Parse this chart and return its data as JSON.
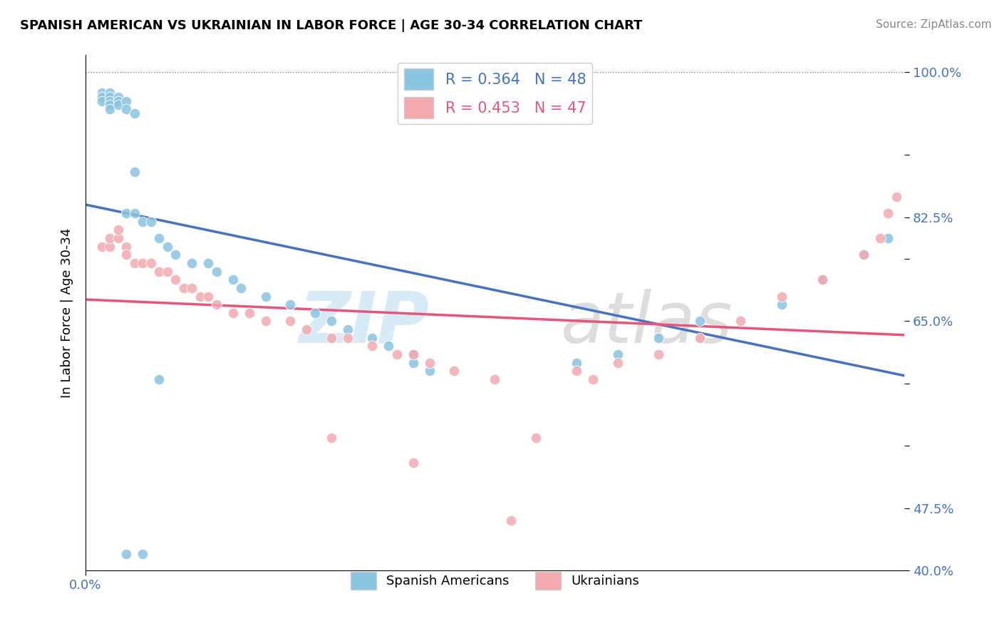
{
  "title": "SPANISH AMERICAN VS UKRAINIAN IN LABOR FORCE | AGE 30-34 CORRELATION CHART",
  "source": "Source: ZipAtlas.com",
  "ylabel": "In Labor Force | Age 30-34",
  "xlim": [
    0.0,
    1.0
  ],
  "ylim": [
    0.4,
    1.02
  ],
  "blue_color": "#89c4e1",
  "pink_color": "#f4a9b0",
  "blue_line_color": "#4472c4",
  "pink_line_color": "#e8547a",
  "legend_blue_label": "R = 0.364   N = 48",
  "legend_pink_label": "R = 0.453   N = 47",
  "legend_blue_series": "Spanish Americans",
  "legend_pink_series": "Ukrainians",
  "blue_r": 0.364,
  "blue_n": 48,
  "pink_r": 0.453,
  "pink_n": 47,
  "background_color": "#ffffff",
  "watermark_zip": "ZIP",
  "watermark_atlas": "atlas",
  "blue_x": [
    0.02,
    0.02,
    0.02,
    0.03,
    0.03,
    0.03,
    0.03,
    0.03,
    0.04,
    0.04,
    0.04,
    0.05,
    0.05,
    0.05,
    0.06,
    0.06,
    0.06,
    0.07,
    0.08,
    0.09,
    0.1,
    0.11,
    0.13,
    0.15,
    0.16,
    0.18,
    0.19,
    0.22,
    0.25,
    0.28,
    0.3,
    0.32,
    0.35,
    0.37,
    0.4,
    0.4,
    0.42,
    0.05,
    0.07,
    0.09,
    0.6,
    0.65,
    0.7,
    0.75,
    0.85,
    0.9,
    0.95,
    0.98
  ],
  "blue_y": [
    0.975,
    0.97,
    0.965,
    0.975,
    0.97,
    0.965,
    0.96,
    0.955,
    0.97,
    0.965,
    0.96,
    0.965,
    0.955,
    0.83,
    0.95,
    0.88,
    0.83,
    0.82,
    0.82,
    0.8,
    0.79,
    0.78,
    0.77,
    0.77,
    0.76,
    0.75,
    0.74,
    0.73,
    0.72,
    0.71,
    0.7,
    0.69,
    0.68,
    0.67,
    0.66,
    0.65,
    0.64,
    0.42,
    0.42,
    0.63,
    0.65,
    0.66,
    0.68,
    0.7,
    0.72,
    0.75,
    0.78,
    0.8
  ],
  "pink_x": [
    0.02,
    0.03,
    0.03,
    0.04,
    0.04,
    0.05,
    0.05,
    0.06,
    0.07,
    0.08,
    0.09,
    0.1,
    0.11,
    0.12,
    0.13,
    0.14,
    0.15,
    0.16,
    0.18,
    0.2,
    0.22,
    0.25,
    0.27,
    0.3,
    0.32,
    0.35,
    0.38,
    0.4,
    0.42,
    0.45,
    0.5,
    0.55,
    0.6,
    0.65,
    0.7,
    0.75,
    0.8,
    0.85,
    0.9,
    0.95,
    0.97,
    0.98,
    0.99,
    0.3,
    0.4,
    0.52,
    0.62
  ],
  "pink_y": [
    0.79,
    0.79,
    0.8,
    0.8,
    0.81,
    0.79,
    0.78,
    0.77,
    0.77,
    0.77,
    0.76,
    0.76,
    0.75,
    0.74,
    0.74,
    0.73,
    0.73,
    0.72,
    0.71,
    0.71,
    0.7,
    0.7,
    0.69,
    0.68,
    0.68,
    0.67,
    0.66,
    0.66,
    0.65,
    0.64,
    0.63,
    0.56,
    0.64,
    0.65,
    0.66,
    0.68,
    0.7,
    0.73,
    0.75,
    0.78,
    0.8,
    0.83,
    0.85,
    0.56,
    0.53,
    0.46,
    0.63
  ]
}
